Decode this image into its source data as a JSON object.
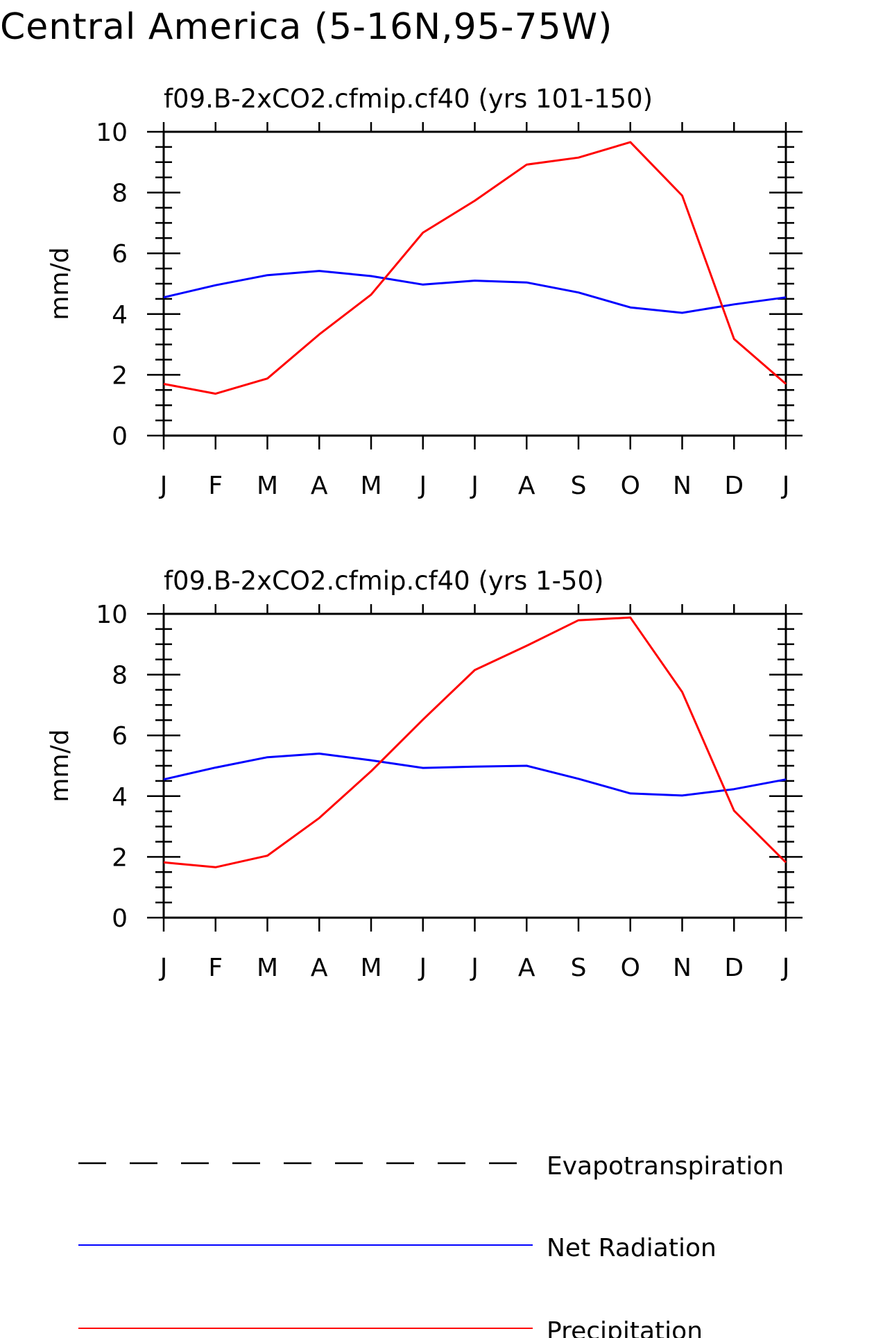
{
  "title": "Central America (5-16N,95-75W)",
  "chart_data": [
    {
      "type": "line",
      "title": "f09.B-2xCO2.cfmip.cf40 (yrs 101-150)",
      "ylabel": "mm/d",
      "ylim": [
        0,
        10
      ],
      "yticks": [
        "0",
        "2",
        "4",
        "6",
        "8",
        "10"
      ],
      "categories": [
        "J",
        "F",
        "M",
        "A",
        "M",
        "J",
        "J",
        "A",
        "S",
        "O",
        "N",
        "D",
        "J"
      ],
      "series": [
        {
          "name": "Net Radiation",
          "color": "#0000ff",
          "values": [
            4.55,
            4.95,
            5.28,
            5.42,
            5.25,
            4.97,
            5.1,
            5.04,
            4.71,
            4.22,
            4.04,
            4.32,
            4.55
          ]
        },
        {
          "name": "Precipitation",
          "color": "#ff0000",
          "values": [
            1.7,
            1.38,
            1.88,
            3.33,
            4.64,
            6.68,
            7.73,
            8.92,
            9.15,
            9.66,
            7.9,
            3.18,
            1.7
          ]
        }
      ]
    },
    {
      "type": "line",
      "title": "f09.B-2xCO2.cfmip.cf40 (yrs 1-50)",
      "ylabel": "mm/d",
      "ylim": [
        0,
        10
      ],
      "yticks": [
        "0",
        "2",
        "4",
        "6",
        "8",
        "10"
      ],
      "categories": [
        "J",
        "F",
        "M",
        "A",
        "M",
        "J",
        "J",
        "A",
        "S",
        "O",
        "N",
        "D",
        "J"
      ],
      "series": [
        {
          "name": "Net Radiation",
          "color": "#0000ff",
          "values": [
            4.55,
            4.94,
            5.28,
            5.4,
            5.18,
            4.93,
            4.97,
            5.0,
            4.57,
            4.09,
            4.02,
            4.23,
            4.55
          ]
        },
        {
          "name": "Precipitation",
          "color": "#ff0000",
          "values": [
            1.82,
            1.66,
            2.04,
            3.28,
            4.82,
            6.52,
            8.15,
            8.95,
            9.79,
            9.88,
            7.43,
            3.52,
            1.82
          ]
        }
      ]
    }
  ],
  "legend": [
    {
      "label": "Evapotranspiration",
      "color": "#000000",
      "style": "dashed"
    },
    {
      "label": "Net Radiation",
      "color": "#0000ff",
      "style": "solid"
    },
    {
      "label": "Precipitation",
      "color": "#ff0000",
      "style": "solid"
    }
  ]
}
